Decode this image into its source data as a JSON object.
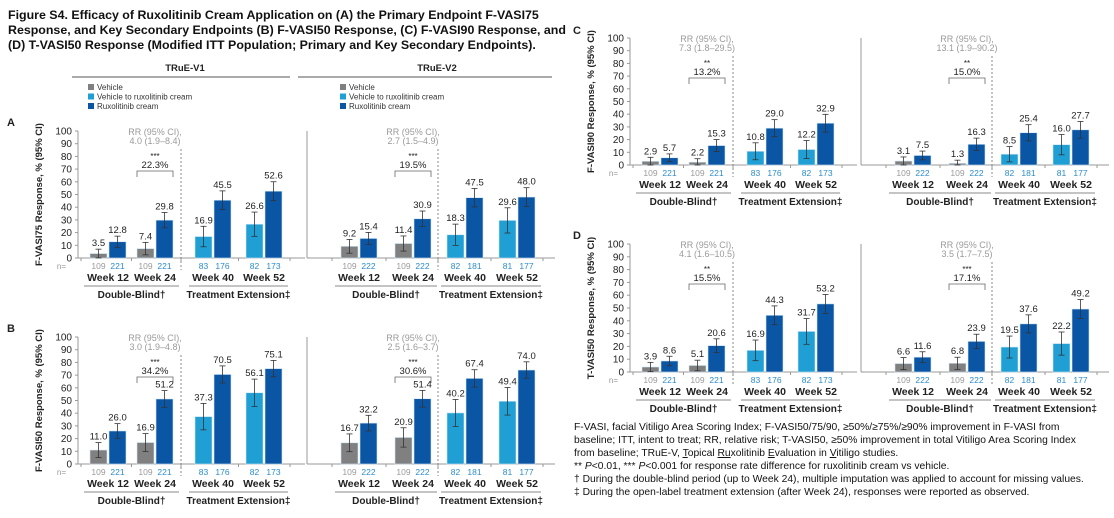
{
  "title": "Figure S4. Efficacy of Ruxolitinib Cream Application on (A) the Primary Endpoint F-VASI75 Response, and Key Secondary Endpoints (B) F-VASI50 Response, (C) F-VASI90 Response, and (D) T-VASI50 Response (Modified ITT Population; Primary and Key Secondary Endpoints).",
  "studies": [
    "TRuE-V1",
    "TRuE-V2"
  ],
  "legend": [
    {
      "name": "Vehicle",
      "color": "#808080"
    },
    {
      "name": "Vehicle to ruxolitinib cream",
      "color": "#1f9fd4"
    },
    {
      "name": "Ruxolitinib cream",
      "color": "#0b55a5"
    }
  ],
  "colors": {
    "vehicle": "#808080",
    "vehicle_to_rux": "#1f9fd4",
    "ruxolitinib": "#0b55a5",
    "n_vehicle": "#9a9a9a",
    "n_rux": "#2b8ccc",
    "rr_text": "#9a9a9a"
  },
  "n_prefix": "n=",
  "periods": [
    "Double-Blind†",
    "Treatment Extension‡"
  ],
  "chart_data": [
    {
      "panel": "A",
      "type": "bar",
      "ylabel": "F-VASI75 Response, % (95% CI)",
      "ylim": [
        0,
        100
      ],
      "yticks": [
        0,
        10,
        20,
        30,
        40,
        50,
        60,
        70,
        80,
        90,
        100
      ],
      "grid": false,
      "studies": [
        {
          "study": "TRuE-V1",
          "rr": [
            "RR (95% CI),",
            "4.0 (1.9–8.4)"
          ],
          "sig": "***",
          "diff": "22.3%",
          "groups": [
            {
              "week": "Week 12",
              "bars": [
                {
                  "series": "Vehicle",
                  "value": 3.5,
                  "n": 109
                },
                {
                  "series": "Ruxolitinib cream",
                  "value": 12.8,
                  "n": 221
                }
              ]
            },
            {
              "week": "Week 24",
              "bars": [
                {
                  "series": "Vehicle",
                  "value": 7.4,
                  "n": 109
                },
                {
                  "series": "Ruxolitinib cream",
                  "value": 29.8,
                  "n": 221
                }
              ]
            },
            {
              "week": "Week 40",
              "bars": [
                {
                  "series": "Vehicle to ruxolitinib cream",
                  "value": 16.9,
                  "n": 83
                },
                {
                  "series": "Ruxolitinib cream",
                  "value": 45.5,
                  "n": 176
                }
              ]
            },
            {
              "week": "Week 52",
              "bars": [
                {
                  "series": "Vehicle to ruxolitinib cream",
                  "value": 26.6,
                  "n": 82
                },
                {
                  "series": "Ruxolitinib cream",
                  "value": 52.6,
                  "n": 173
                }
              ]
            }
          ]
        },
        {
          "study": "TRuE-V2",
          "rr": [
            "RR (95% CI),",
            "2.7 (1.5–4.9)"
          ],
          "sig": "***",
          "diff": "19.5%",
          "groups": [
            {
              "week": "Week 12",
              "bars": [
                {
                  "series": "Vehicle",
                  "value": 9.2,
                  "n": 109
                },
                {
                  "series": "Ruxolitinib cream",
                  "value": 15.4,
                  "n": 222
                }
              ]
            },
            {
              "week": "Week 24",
              "bars": [
                {
                  "series": "Vehicle",
                  "value": 11.4,
                  "n": 109
                },
                {
                  "series": "Ruxolitinib cream",
                  "value": 30.9,
                  "n": 222
                }
              ]
            },
            {
              "week": "Week 40",
              "bars": [
                {
                  "series": "Vehicle to ruxolitinib cream",
                  "value": 18.3,
                  "n": 82
                },
                {
                  "series": "Ruxolitinib cream",
                  "value": 47.5,
                  "n": 181
                }
              ]
            },
            {
              "week": "Week 52",
              "bars": [
                {
                  "series": "Vehicle to ruxolitinib cream",
                  "value": 29.6,
                  "n": 81
                },
                {
                  "series": "Ruxolitinib cream",
                  "value": 48.0,
                  "n": 177
                }
              ]
            }
          ]
        }
      ]
    },
    {
      "panel": "B",
      "type": "bar",
      "ylabel": "F-VASI50 Response, % (95% CI)",
      "ylim": [
        0,
        100
      ],
      "yticks": [
        0,
        10,
        20,
        30,
        40,
        50,
        60,
        70,
        80,
        90,
        100
      ],
      "grid": false,
      "studies": [
        {
          "study": "TRuE-V1",
          "rr": [
            "RR (95% CI),",
            "3.0 (1.9–4.8)"
          ],
          "sig": "***",
          "diff": "34.2%",
          "groups": [
            {
              "week": "Week 12",
              "bars": [
                {
                  "series": "Vehicle",
                  "value": 11.0,
                  "n": 109
                },
                {
                  "series": "Ruxolitinib cream",
                  "value": 26.0,
                  "n": 221
                }
              ]
            },
            {
              "week": "Week 24",
              "bars": [
                {
                  "series": "Vehicle",
                  "value": 16.9,
                  "n": 109
                },
                {
                  "series": "Ruxolitinib cream",
                  "value": 51.2,
                  "n": 221
                }
              ]
            },
            {
              "week": "Week 40",
              "bars": [
                {
                  "series": "Vehicle to ruxolitinib cream",
                  "value": 37.3,
                  "n": 83
                },
                {
                  "series": "Ruxolitinib cream",
                  "value": 70.5,
                  "n": 176
                }
              ]
            },
            {
              "week": "Week 52",
              "bars": [
                {
                  "series": "Vehicle to ruxolitinib cream",
                  "value": 56.1,
                  "n": 82
                },
                {
                  "series": "Ruxolitinib cream",
                  "value": 75.1,
                  "n": 173
                }
              ]
            }
          ]
        },
        {
          "study": "TRuE-V2",
          "rr": [
            "RR (95% CI),",
            "2.5 (1.6–3.7)"
          ],
          "sig": "***",
          "diff": "30.6%",
          "groups": [
            {
              "week": "Week 12",
              "bars": [
                {
                  "series": "Vehicle",
                  "value": 16.7,
                  "n": 109
                },
                {
                  "series": "Ruxolitinib cream",
                  "value": 32.2,
                  "n": 222
                }
              ]
            },
            {
              "week": "Week 24",
              "bars": [
                {
                  "series": "Vehicle",
                  "value": 20.9,
                  "n": 109
                },
                {
                  "series": "Ruxolitinib cream",
                  "value": 51.4,
                  "n": 222
                }
              ]
            },
            {
              "week": "Week 40",
              "bars": [
                {
                  "series": "Vehicle to ruxolitinib cream",
                  "value": 40.2,
                  "n": 82
                },
                {
                  "series": "Ruxolitinib cream",
                  "value": 67.4,
                  "n": 181
                }
              ]
            },
            {
              "week": "Week 52",
              "bars": [
                {
                  "series": "Vehicle to ruxolitinib cream",
                  "value": 49.4,
                  "n": 81
                },
                {
                  "series": "Ruxolitinib cream",
                  "value": 74.0,
                  "n": 177
                }
              ]
            }
          ]
        }
      ]
    },
    {
      "panel": "C",
      "type": "bar",
      "ylabel": "F-VASI90 Response, % (95% CI)",
      "ylim": [
        0,
        100
      ],
      "yticks": [
        0,
        10,
        20,
        30,
        40,
        50,
        60,
        70,
        80,
        90,
        100
      ],
      "grid": false,
      "studies": [
        {
          "study": "TRuE-V1",
          "rr": [
            "RR (95% CI),",
            "7.3 (1.8–29.5)"
          ],
          "sig": "**",
          "diff": "13.2%",
          "groups": [
            {
              "week": "Week 12",
              "bars": [
                {
                  "series": "Vehicle",
                  "value": 2.9,
                  "n": 109
                },
                {
                  "series": "Ruxolitinib cream",
                  "value": 5.7,
                  "n": 221
                }
              ]
            },
            {
              "week": "Week 24",
              "bars": [
                {
                  "series": "Vehicle",
                  "value": 2.2,
                  "n": 109
                },
                {
                  "series": "Ruxolitinib cream",
                  "value": 15.3,
                  "n": 221
                }
              ]
            },
            {
              "week": "Week 40",
              "bars": [
                {
                  "series": "Vehicle to ruxolitinib cream",
                  "value": 10.8,
                  "n": 83
                },
                {
                  "series": "Ruxolitinib cream",
                  "value": 29.0,
                  "n": 176
                }
              ]
            },
            {
              "week": "Week 52",
              "bars": [
                {
                  "series": "Vehicle to ruxolitinib cream",
                  "value": 12.2,
                  "n": 82
                },
                {
                  "series": "Ruxolitinib cream",
                  "value": 32.9,
                  "n": 173
                }
              ]
            }
          ]
        },
        {
          "study": "TRuE-V2",
          "rr": [
            "RR (95% CI),",
            "13.1 (1.9–90.2)"
          ],
          "sig": "**",
          "diff": "15.0%",
          "groups": [
            {
              "week": "Week 12",
              "bars": [
                {
                  "series": "Vehicle",
                  "value": 3.1,
                  "n": 109
                },
                {
                  "series": "Ruxolitinib cream",
                  "value": 7.5,
                  "n": 222
                }
              ]
            },
            {
              "week": "Week 24",
              "bars": [
                {
                  "series": "Vehicle",
                  "value": 1.3,
                  "n": 109
                },
                {
                  "series": "Ruxolitinib cream",
                  "value": 16.3,
                  "n": 222
                }
              ]
            },
            {
              "week": "Week 40",
              "bars": [
                {
                  "series": "Vehicle to ruxolitinib cream",
                  "value": 8.5,
                  "n": 82
                },
                {
                  "series": "Ruxolitinib cream",
                  "value": 25.4,
                  "n": 181
                }
              ]
            },
            {
              "week": "Week 52",
              "bars": [
                {
                  "series": "Vehicle to ruxolitinib cream",
                  "value": 16.0,
                  "n": 81
                },
                {
                  "series": "Ruxolitinib cream",
                  "value": 27.7,
                  "n": 177
                }
              ]
            }
          ]
        }
      ]
    },
    {
      "panel": "D",
      "type": "bar",
      "ylabel": "T-VASI50 Response, % (95% CI)",
      "ylim": [
        0,
        100
      ],
      "yticks": [
        0,
        10,
        20,
        30,
        40,
        50,
        60,
        70,
        80,
        90,
        100
      ],
      "grid": false,
      "studies": [
        {
          "study": "TRuE-V1",
          "rr": [
            "RR (95% CI),",
            "4.1 (1.6–10.5)"
          ],
          "sig": "**",
          "diff": "15.5%",
          "groups": [
            {
              "week": "Week 12",
              "bars": [
                {
                  "series": "Vehicle",
                  "value": 3.9,
                  "n": 109
                },
                {
                  "series": "Ruxolitinib cream",
                  "value": 8.6,
                  "n": 221
                }
              ]
            },
            {
              "week": "Week 24",
              "bars": [
                {
                  "series": "Vehicle",
                  "value": 5.1,
                  "n": 109
                },
                {
                  "series": "Ruxolitinib cream",
                  "value": 20.6,
                  "n": 221
                }
              ]
            },
            {
              "week": "Week 40",
              "bars": [
                {
                  "series": "Vehicle to ruxolitinib cream",
                  "value": 16.9,
                  "n": 83
                },
                {
                  "series": "Ruxolitinib cream",
                  "value": 44.3,
                  "n": 176
                }
              ]
            },
            {
              "week": "Week 52",
              "bars": [
                {
                  "series": "Vehicle to ruxolitinib cream",
                  "value": 31.7,
                  "n": 82
                },
                {
                  "series": "Ruxolitinib cream",
                  "value": 53.2,
                  "n": 173
                }
              ]
            }
          ]
        },
        {
          "study": "TRuE-V2",
          "rr": [
            "RR (95% CI),",
            "3.5 (1.7–7.5)"
          ],
          "sig": "***",
          "diff": "17.1%",
          "groups": [
            {
              "week": "Week 12",
              "bars": [
                {
                  "series": "Vehicle",
                  "value": 6.6,
                  "n": 109
                },
                {
                  "series": "Ruxolitinib cream",
                  "value": 11.6,
                  "n": 222
                }
              ]
            },
            {
              "week": "Week 24",
              "bars": [
                {
                  "series": "Vehicle",
                  "value": 6.8,
                  "n": 109
                },
                {
                  "series": "Ruxolitinib cream",
                  "value": 23.9,
                  "n": 222
                }
              ]
            },
            {
              "week": "Week 40",
              "bars": [
                {
                  "series": "Vehicle to ruxolitinib cream",
                  "value": 19.5,
                  "n": 82
                },
                {
                  "series": "Ruxolitinib cream",
                  "value": 37.6,
                  "n": 181
                }
              ]
            },
            {
              "week": "Week 52",
              "bars": [
                {
                  "series": "Vehicle to ruxolitinib cream",
                  "value": 22.2,
                  "n": 81
                },
                {
                  "series": "Ruxolitinib cream",
                  "value": 49.2,
                  "n": 177
                }
              ]
            }
          ]
        }
      ]
    }
  ],
  "footnotes": [
    [
      {
        "t": "F-VASI, facial Vitiligo Area Scoring Index; F-VASI50/75/90, ≥50%/≥75%/≥90% improvement in F-VASI from"
      }
    ],
    [
      {
        "t": "baseline; ITT, intent to treat; RR, relative risk; T-VASI50, ≥50% improvement in total Vitiligo Area Scoring Index"
      }
    ],
    [
      {
        "t": "from baseline; TRuE-V, "
      },
      {
        "t": "T",
        "u": true
      },
      {
        "t": "opical "
      },
      {
        "t": "Ru",
        "u": true
      },
      {
        "t": "xolitinib "
      },
      {
        "t": "E",
        "u": true
      },
      {
        "t": "valuation in "
      },
      {
        "t": "V",
        "u": true
      },
      {
        "t": "itiligo studies."
      }
    ],
    [
      {
        "t": "** "
      },
      {
        "t": "P",
        "i": true
      },
      {
        "t": "<0.01, *** "
      },
      {
        "t": "P",
        "i": true
      },
      {
        "t": "<0.001 for response rate difference for ruxolitinib cream vs vehicle."
      }
    ],
    [
      {
        "t": "† During the double-blind period (up to Week 24), multiple imputation was applied to account for missing values."
      }
    ],
    [
      {
        "t": "‡ During the open-label treatment extension (after Week 24), responses were reported as observed."
      }
    ]
  ]
}
